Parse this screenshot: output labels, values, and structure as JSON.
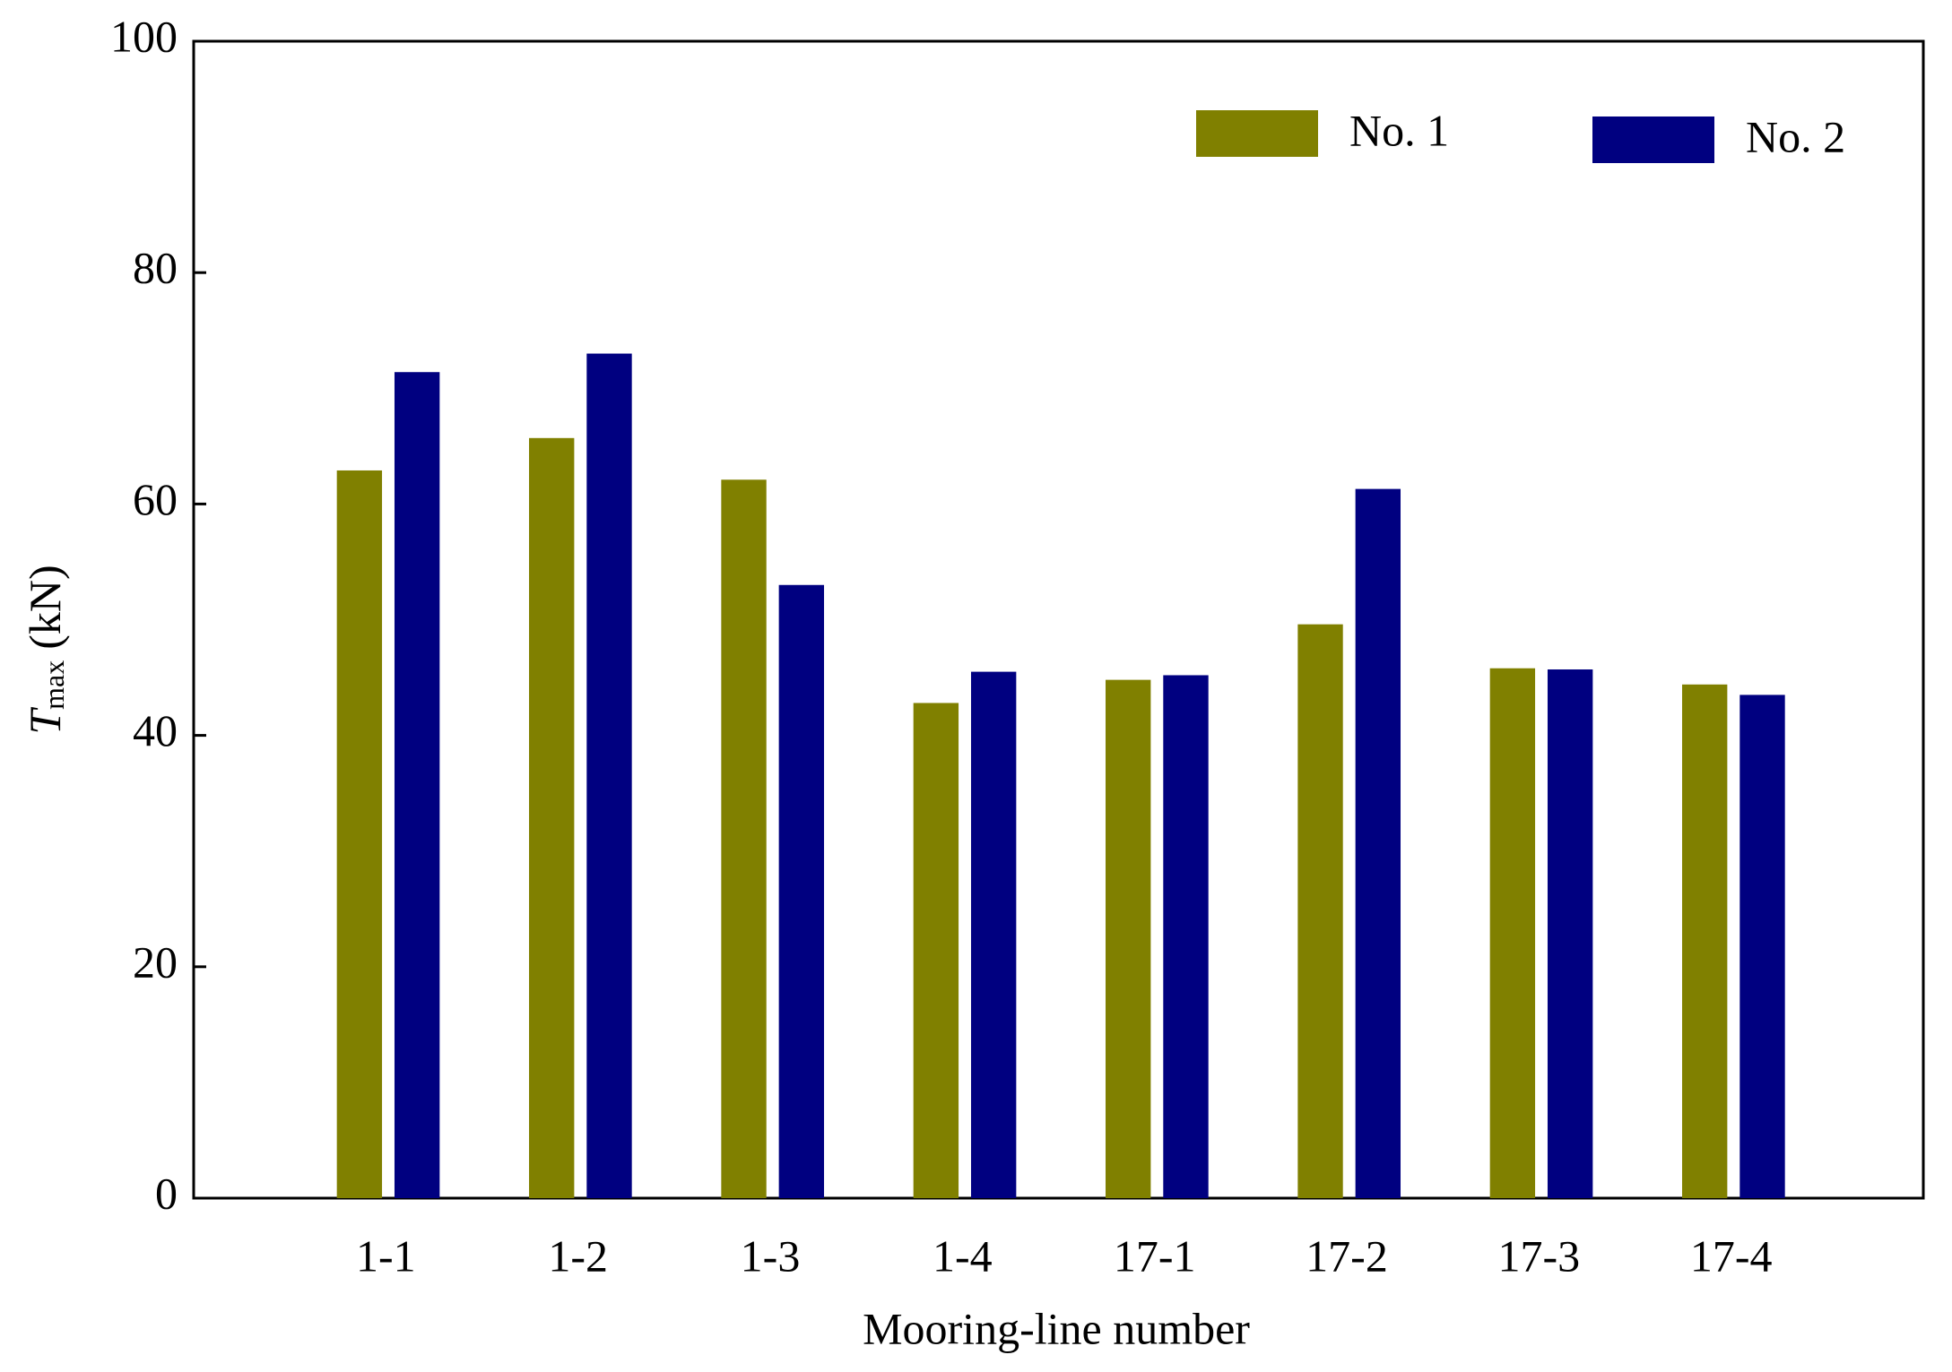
{
  "chart_data": {
    "type": "bar",
    "ylabel": {
      "symbol": "T",
      "subscript": "max",
      "unit": "(kN)"
    },
    "xlabel": "Mooring-line number",
    "categories": [
      "1-1",
      "1-2",
      "1-3",
      "1-4",
      "17-1",
      "17-2",
      "17-3",
      "17-4"
    ],
    "series": [
      {
        "name": "No. 1",
        "color": "#808000",
        "values": [
          62.9,
          65.7,
          62.1,
          42.8,
          44.8,
          49.6,
          45.8,
          44.4
        ]
      },
      {
        "name": "No. 2",
        "color": "#000080",
        "values": [
          71.4,
          73.0,
          53.0,
          45.5,
          45.2,
          61.3,
          45.7,
          43.5
        ]
      }
    ],
    "ylim": [
      0,
      100
    ],
    "yticks": [
      0,
      20,
      40,
      60,
      80,
      100
    ],
    "grid": false,
    "legend": "upper right"
  }
}
